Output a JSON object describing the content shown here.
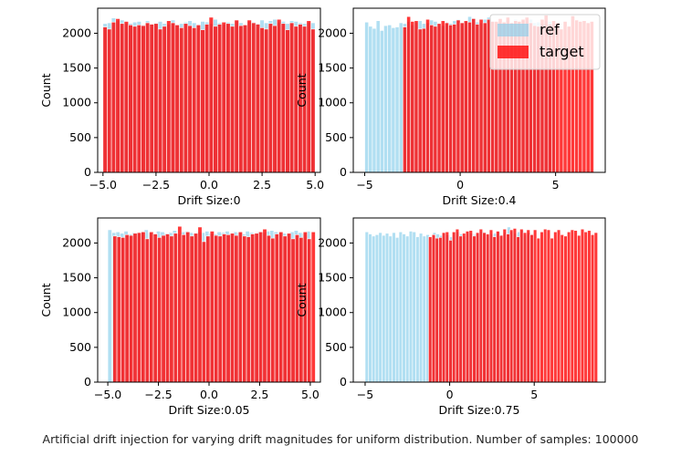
{
  "caption": "Artificial drift injection for varying drift magnitudes for uniform distribution. Number of samples: 100000",
  "colors": {
    "ref": "#87ceeb",
    "target": "#ff0000",
    "axis": "#000000",
    "text": "#000000"
  },
  "chart_data": [
    {
      "type": "bar",
      "title": "",
      "xlabel": "Drift Size:0",
      "ylabel": "Count",
      "xlim": [
        -5.25,
        5.25
      ],
      "ylim": [
        0,
        2360
      ],
      "xticks": [
        -5.0,
        -2.5,
        0.0,
        2.5,
        5.0
      ],
      "xtick_labels": [
        "−5.0",
        "−2.5",
        "0.0",
        "2.5",
        "5.0"
      ],
      "yticks": [
        0,
        500,
        1000,
        1500,
        2000
      ],
      "ytick_labels": [
        "0",
        "500",
        "1000",
        "1500",
        "2000"
      ],
      "legend": null,
      "series": [
        {
          "name": "ref",
          "bin_start": -5.0,
          "bin_width": 0.2,
          "values": [
            2140,
            2150,
            2220,
            2180,
            2190,
            2150,
            2140,
            2160,
            2170,
            2120,
            2180,
            2130,
            2150,
            2170,
            2140,
            2130,
            2190,
            2120,
            2140,
            2160,
            2180,
            2150,
            2130,
            2170,
            2160,
            2140,
            2200,
            2150,
            2130,
            2160,
            2140,
            2180,
            2150,
            2120,
            2170,
            2160,
            2140,
            2190,
            2150,
            2180,
            2200,
            2160,
            2170,
            2140,
            2180,
            2170,
            2150,
            2140,
            2160,
            2150
          ]
        },
        {
          "name": "target",
          "bin_start": -5.0,
          "bin_width": 0.2,
          "values": [
            2090,
            2060,
            2160,
            2210,
            2140,
            2170,
            2120,
            2100,
            2120,
            2110,
            2150,
            2130,
            2140,
            2060,
            2100,
            2180,
            2150,
            2120,
            2080,
            2140,
            2110,
            2080,
            2120,
            2050,
            2130,
            2230,
            2100,
            2130,
            2160,
            2140,
            2100,
            2190,
            2110,
            2120,
            2190,
            2150,
            2130,
            2080,
            2060,
            2140,
            2110,
            2200,
            2140,
            2050,
            2150,
            2100,
            2130,
            2100,
            2180,
            2060
          ]
        }
      ]
    },
    {
      "type": "bar",
      "title": "",
      "xlabel": "Drift Size:0.4",
      "ylabel": "Count",
      "xlim": [
        -5.6,
        7.6
      ],
      "ylim": [
        0,
        2360
      ],
      "xticks": [
        -5,
        0,
        5
      ],
      "xtick_labels": [
        "−5",
        "0",
        "5"
      ],
      "yticks": [
        0,
        500,
        1000,
        1500,
        2000
      ],
      "ytick_labels": [
        "0",
        "500",
        "1000",
        "1500",
        "2000"
      ],
      "legend": "top-right",
      "series": [
        {
          "name": "ref",
          "bin_start": -5.0,
          "bin_width": 0.2,
          "values": [
            2160,
            2100,
            2070,
            2180,
            2040,
            2110,
            2120,
            2080,
            2090,
            2150,
            2140,
            2170,
            2120,
            2160,
            2180,
            2140,
            2150,
            2190,
            2170,
            2130,
            2110,
            2160,
            2140,
            2180,
            2200,
            2150,
            2170,
            2240,
            2220,
            2160,
            2150,
            2200,
            2230,
            2180,
            2140,
            2160,
            2170,
            2190,
            2150,
            2200,
            2160,
            2180,
            2170,
            2200,
            2150,
            2160,
            2140,
            2180,
            2170,
            2150
          ]
        },
        {
          "name": "target",
          "bin_start": -3.0,
          "bin_width": 0.2,
          "values": [
            2090,
            2240,
            2170,
            2180,
            2060,
            2070,
            2200,
            2120,
            2100,
            2140,
            2180,
            2150,
            2120,
            2130,
            2190,
            2150,
            2180,
            2160,
            2210,
            2130,
            2200,
            2150,
            2200,
            2170,
            2170,
            2210,
            2160,
            2230,
            2150,
            2180,
            2170,
            2200,
            2230,
            2150,
            2110,
            2100,
            2200,
            2260,
            2130,
            2180,
            2150,
            2060,
            2170,
            2100,
            2250,
            2190,
            2170,
            2180,
            2150,
            2170
          ]
        }
      ]
    },
    {
      "type": "bar",
      "title": "",
      "xlabel": "Drift Size:0.05",
      "ylabel": "Count",
      "xlim": [
        -5.5,
        5.5
      ],
      "ylim": [
        0,
        2360
      ],
      "xticks": [
        -5.0,
        -2.5,
        0.0,
        2.5,
        5.0
      ],
      "xtick_labels": [
        "−5.0",
        "−2.5",
        "0.0",
        "2.5",
        "5.0"
      ],
      "yticks": [
        0,
        500,
        1000,
        1500,
        2000
      ],
      "ytick_labels": [
        "0",
        "500",
        "1000",
        "1500",
        "2000"
      ],
      "legend": null,
      "series": [
        {
          "name": "ref",
          "bin_start": -5.0,
          "bin_width": 0.2,
          "values": [
            2190,
            2150,
            2160,
            2140,
            2170,
            2130,
            2150,
            2140,
            2160,
            2190,
            2150,
            2130,
            2170,
            2160,
            2140,
            2150,
            2180,
            2130,
            2160,
            2170,
            2150,
            2140,
            2160,
            2150,
            2170,
            2140,
            2130,
            2160,
            2150,
            2170,
            2140,
            2160,
            2150,
            2130,
            2170,
            2150,
            2140,
            2160,
            2150,
            2170,
            2180,
            2160,
            2150,
            2140,
            2130,
            2160,
            2180,
            2150,
            2140,
            2170
          ]
        },
        {
          "name": "target",
          "bin_start": -4.75,
          "bin_width": 0.2,
          "values": [
            2100,
            2090,
            2080,
            2120,
            2110,
            2140,
            2150,
            2160,
            2060,
            2160,
            2130,
            2080,
            2110,
            2130,
            2100,
            2140,
            2240,
            2120,
            2160,
            2100,
            2140,
            2230,
            2020,
            2100,
            2170,
            2110,
            2100,
            2130,
            2120,
            2140,
            2110,
            2160,
            2100,
            2090,
            2130,
            2140,
            2160,
            2200,
            2110,
            2070,
            2130,
            2160,
            2100,
            2140,
            2060,
            2120,
            2080,
            2160,
            2060,
            2160
          ]
        }
      ]
    },
    {
      "type": "bar",
      "title": "",
      "xlabel": "Drift Size:0.75",
      "ylabel": "Count",
      "xlim": [
        -5.7,
        9.2
      ],
      "ylim": [
        0,
        2360
      ],
      "xticks": [
        -5,
        0,
        5
      ],
      "xtick_labels": [
        "−5",
        "0",
        "5"
      ],
      "yticks": [
        0,
        500,
        1000,
        1500,
        2000
      ],
      "ytick_labels": [
        "0",
        "500",
        "1000",
        "1500",
        "2000"
      ],
      "legend": null,
      "series": [
        {
          "name": "ref",
          "bin_start": -5.0,
          "bin_width": 0.2,
          "values": [
            2160,
            2130,
            2100,
            2120,
            2150,
            2110,
            2140,
            2100,
            2150,
            2080,
            2160,
            2130,
            2100,
            2170,
            2160,
            2090,
            2140,
            2100,
            2120,
            2070,
            2150,
            2130,
            2110,
            2140,
            2120,
            2090,
            2150,
            2160,
            2130,
            2100,
            2160,
            2140,
            2120,
            2140,
            2170,
            2150,
            2110,
            2130,
            2140,
            2160,
            2120,
            2150,
            2230,
            2170,
            2140,
            2160,
            2180,
            2120,
            2150,
            2130
          ]
        },
        {
          "name": "target",
          "bin_start": -1.25,
          "bin_width": 0.2,
          "values": [
            2090,
            2120,
            2070,
            2080,
            2150,
            2160,
            2040,
            2160,
            2200,
            2100,
            2140,
            2170,
            2180,
            2100,
            2150,
            2200,
            2150,
            2130,
            2190,
            2090,
            2170,
            2110,
            2200,
            2130,
            2190,
            2210,
            2090,
            2200,
            2150,
            2190,
            2120,
            2190,
            2070,
            2160,
            2200,
            2190,
            2070,
            2160,
            2190,
            2120,
            2100,
            2160,
            2190,
            2180,
            2110,
            2200,
            2160,
            2180,
            2120,
            2150
          ]
        }
      ]
    }
  ],
  "legend": {
    "items": [
      {
        "label": "ref",
        "color": "#87ceeb"
      },
      {
        "label": "target",
        "color": "#ff0000"
      }
    ]
  }
}
